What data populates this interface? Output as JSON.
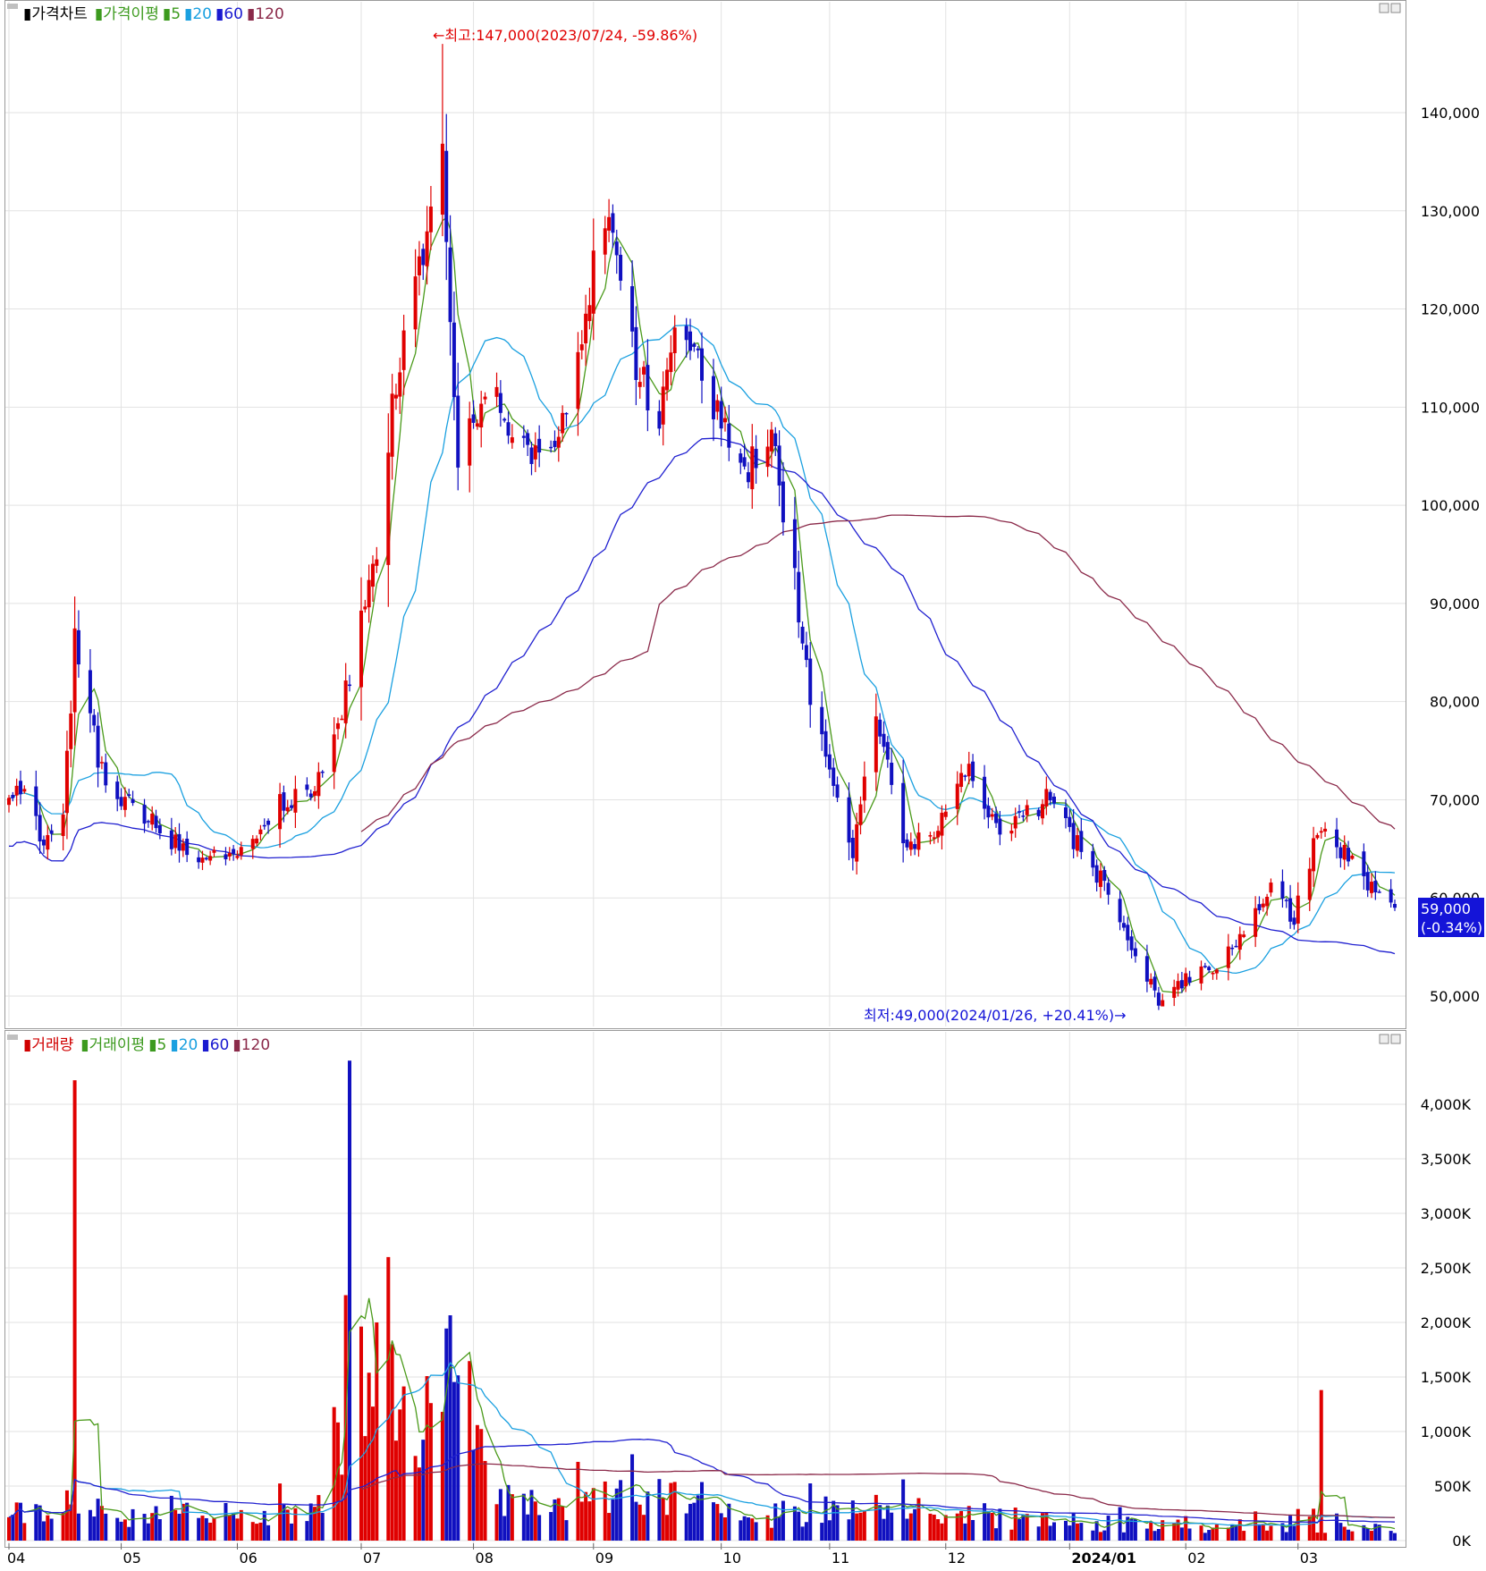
{
  "price_panel": {
    "legend": [
      {
        "label": "가격차트",
        "color": "#000000"
      },
      {
        "label": "가격이평",
        "color": "#3c9a1e"
      },
      {
        "label": "5",
        "color": "#3c9a1e"
      },
      {
        "label": "20",
        "color": "#1aa0e0"
      },
      {
        "label": "60",
        "color": "#1a1ad0"
      },
      {
        "label": "120",
        "color": "#8b2a4a"
      }
    ],
    "high_annotation": "←최고:147,000(2023/07/24, -59.86%)",
    "low_annotation": "최저:49,000(2024/01/26, +20.41%)→",
    "last_price_label": "59,000",
    "last_change_label": "(-0.34%)"
  },
  "volume_panel": {
    "legend": [
      {
        "label": "거래량",
        "color": "#d00000"
      },
      {
        "label": "거래이평",
        "color": "#3c9a1e"
      },
      {
        "label": "5",
        "color": "#3c9a1e"
      },
      {
        "label": "20",
        "color": "#1aa0e0"
      },
      {
        "label": "60",
        "color": "#1a1ad0"
      },
      {
        "label": "120",
        "color": "#8b2a4a"
      }
    ]
  },
  "x_axis": {
    "month_labels": [
      "04",
      "05",
      "06",
      "07",
      "08",
      "09",
      "10",
      "11",
      "12",
      "2024/01",
      "02",
      "03"
    ]
  },
  "colors": {
    "up": "#e00000",
    "down": "#1010c0",
    "ma5": "#4a9a1a",
    "ma20": "#1aa0e0",
    "ma60": "#2020d0",
    "ma120": "#8b2a4a",
    "grid": "#e2e2e2",
    "last_price_bg": "#1414d8"
  },
  "chart_data": [
    {
      "type": "candlestick",
      "title": "가격차트",
      "y_ticks": [
        "140,000",
        "130,000",
        "120,000",
        "110,000",
        "100,000",
        "90,000",
        "80,000",
        "70,000",
        "60,000",
        "50,000"
      ],
      "ylim": [
        46000,
        152000
      ],
      "x_start": "2023-04-03",
      "x_end": "2024-03-26",
      "approx_close": [
        {
          "date": "2023-04-03",
          "close": 70000
        },
        {
          "date": "2023-04-07",
          "close": 72000
        },
        {
          "date": "2023-04-12",
          "close": 65000
        },
        {
          "date": "2023-04-17",
          "close": 68000
        },
        {
          "date": "2023-04-20",
          "close": 86000
        },
        {
          "date": "2023-04-24",
          "close": 78000
        },
        {
          "date": "2023-04-28",
          "close": 71000
        },
        {
          "date": "2023-05-05",
          "close": 69000
        },
        {
          "date": "2023-05-15",
          "close": 66000
        },
        {
          "date": "2023-05-25",
          "close": 64000
        },
        {
          "date": "2023-06-05",
          "close": 65000
        },
        {
          "date": "2023-06-12",
          "close": 70000
        },
        {
          "date": "2023-06-20",
          "close": 70000
        },
        {
          "date": "2023-06-26",
          "close": 76000
        },
        {
          "date": "2023-07-03",
          "close": 88000
        },
        {
          "date": "2023-07-07",
          "close": 96000
        },
        {
          "date": "2023-07-12",
          "close": 113000
        },
        {
          "date": "2023-07-17",
          "close": 122000
        },
        {
          "date": "2023-07-24",
          "close": 136000
        },
        {
          "date": "2023-07-28",
          "close": 105000
        },
        {
          "date": "2023-08-04",
          "close": 112000
        },
        {
          "date": "2023-08-11",
          "close": 108000
        },
        {
          "date": "2023-08-18",
          "close": 104000
        },
        {
          "date": "2023-08-25",
          "close": 110000
        },
        {
          "date": "2023-09-01",
          "close": 124000
        },
        {
          "date": "2023-09-06",
          "close": 128000
        },
        {
          "date": "2023-09-12",
          "close": 114000
        },
        {
          "date": "2023-09-18",
          "close": 109000
        },
        {
          "date": "2023-09-22",
          "close": 120000
        },
        {
          "date": "2023-10-04",
          "close": 108000
        },
        {
          "date": "2023-10-11",
          "close": 104000
        },
        {
          "date": "2023-10-17",
          "close": 107000
        },
        {
          "date": "2023-10-23",
          "close": 92000
        },
        {
          "date": "2023-10-27",
          "close": 80000
        },
        {
          "date": "2023-11-02",
          "close": 72000
        },
        {
          "date": "2023-11-07",
          "close": 64000
        },
        {
          "date": "2023-11-13",
          "close": 79000
        },
        {
          "date": "2023-11-20",
          "close": 65000
        },
        {
          "date": "2023-11-27",
          "close": 66000
        },
        {
          "date": "2023-12-04",
          "close": 71000
        },
        {
          "date": "2023-12-08",
          "close": 73000
        },
        {
          "date": "2023-12-14",
          "close": 67000
        },
        {
          "date": "2023-12-20",
          "close": 68000
        },
        {
          "date": "2023-12-27",
          "close": 70000
        },
        {
          "date": "2024-01-03",
          "close": 66000
        },
        {
          "date": "2024-01-10",
          "close": 62000
        },
        {
          "date": "2024-01-17",
          "close": 56000
        },
        {
          "date": "2024-01-26",
          "close": 49000
        },
        {
          "date": "2024-02-01",
          "close": 52000
        },
        {
          "date": "2024-02-08",
          "close": 53000
        },
        {
          "date": "2024-02-16",
          "close": 57000
        },
        {
          "date": "2024-02-22",
          "close": 61000
        },
        {
          "date": "2024-02-29",
          "close": 58000
        },
        {
          "date": "2024-03-06",
          "close": 67000
        },
        {
          "date": "2024-03-12",
          "close": 65000
        },
        {
          "date": "2024-03-19",
          "close": 61000
        },
        {
          "date": "2024-03-26",
          "close": 59000
        }
      ]
    },
    {
      "type": "bar",
      "title": "거래량",
      "y_ticks": [
        "4,000K",
        "3,500K",
        "3,000K",
        "2,500K",
        "2,000K",
        "1,500K",
        "1,000K",
        "500K",
        "0K"
      ],
      "ylim": [
        0,
        4400
      ],
      "unit": "K",
      "major_spikes": [
        {
          "date": "2023-04-20",
          "volume": 4220
        },
        {
          "date": "2023-06-29",
          "volume": 2250
        },
        {
          "date": "2023-06-30",
          "volume": 4400
        },
        {
          "date": "2023-07-07",
          "volume": 2000
        },
        {
          "date": "2023-07-11",
          "volume": 1800
        },
        {
          "date": "2023-07-24",
          "volume": 1180
        },
        {
          "date": "2024-03-07",
          "volume": 1380
        }
      ]
    }
  ]
}
